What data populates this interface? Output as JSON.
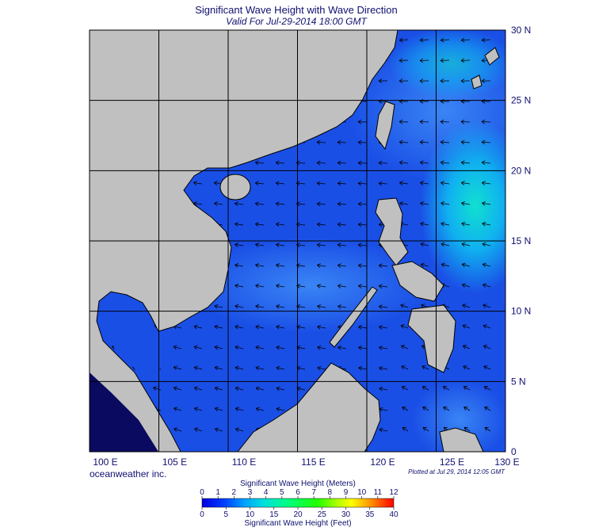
{
  "title": "Significant Wave Height with Wave Direction",
  "subtitle": "Valid For Jul-29-2014 18:00 GMT",
  "map": {
    "latitude_labels": [
      "30 N",
      "25 N",
      "20 N",
      "15 N",
      "10 N",
      "5 N",
      "0"
    ],
    "longitude_labels": [
      "100 E",
      "105 E",
      "110 E",
      "115 E",
      "120 E",
      "125 E",
      "130 E"
    ]
  },
  "credit": "oceanweather inc.",
  "plotted": "Plotted at Jul 29, 2014 12:05 GMT",
  "legend": {
    "meters_title": "Significant Wave Height (Meters)",
    "meters_ticks": [
      0,
      1,
      2,
      3,
      4,
      5,
      6,
      7,
      8,
      9,
      10,
      11,
      12
    ],
    "feet_ticks": [
      0,
      5,
      10,
      15,
      20,
      25,
      30,
      35,
      40
    ],
    "feet_title": "Significant Wave Height (Feet)"
  }
}
